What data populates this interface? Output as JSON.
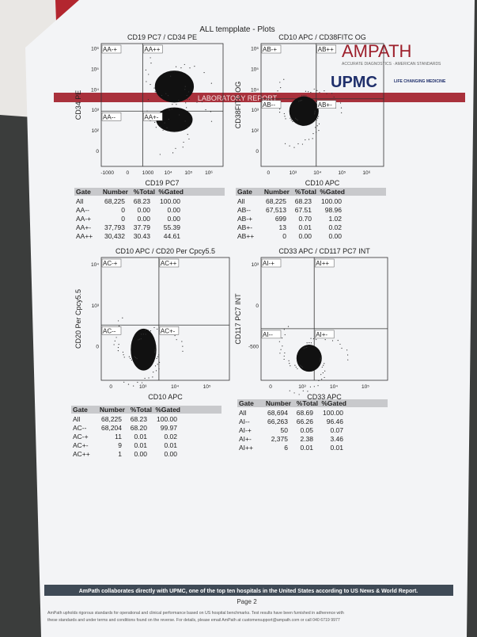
{
  "title": "ALL tempplate - Plots",
  "branding": {
    "ampath": "AMPATH",
    "ampath_sub": "ACCURATE DIAGNOSTICS · AMERICAN STANDARDS",
    "upmc": "UPMC",
    "upmc_sub": "LIFE CHANGING MEDICINE",
    "banner": "LABORATORY REPORT"
  },
  "plots": [
    {
      "title": "CD19 PC7 / CD34 PE",
      "x_label": "CD19 PC7",
      "y_label": "CD34 PE",
      "x_ticks": [
        "-1000",
        "0",
        "1000",
        "10⁴",
        "10⁵",
        "10⁶"
      ],
      "y_ticks": [
        "10⁶",
        "10⁵",
        "10⁴",
        "10³",
        "10²",
        "0"
      ],
      "quadrants": [
        "AA-+",
        "AA++",
        "AA--",
        "AA+-"
      ],
      "table": {
        "header": [
          "Gate",
          "Number",
          "%Total",
          "%Gated"
        ],
        "rows": [
          [
            "All",
            "68,225",
            "68.23",
            "100.00"
          ],
          [
            "AA--",
            "0",
            "0.00",
            "0.00"
          ],
          [
            "AA-+",
            "0",
            "0.00",
            "0.00"
          ],
          [
            "AA+-",
            "37,793",
            "37.79",
            "55.39"
          ],
          [
            "AA++",
            "30,432",
            "30.43",
            "44.61"
          ]
        ]
      }
    },
    {
      "title": "CD10 APC / CD38FITC OG",
      "x_label": "CD10 APC",
      "y_label": "CD38FITC OG",
      "x_ticks": [
        "0",
        "10³",
        "10⁴",
        "10⁵",
        "10⁶"
      ],
      "y_ticks": [
        "10⁶",
        "10⁵",
        "10⁴",
        "10³",
        "10²",
        "0"
      ],
      "quadrants": [
        "AB-+",
        "AB++",
        "AB--",
        "AB+-"
      ],
      "table": {
        "header": [
          "Gate",
          "Number",
          "%Total",
          "%Gated"
        ],
        "rows": [
          [
            "All",
            "68,225",
            "68.23",
            "100.00"
          ],
          [
            "AB--",
            "67,513",
            "67.51",
            "98.96"
          ],
          [
            "AB-+",
            "699",
            "0.70",
            "1.02"
          ],
          [
            "AB+-",
            "13",
            "0.01",
            "0.02"
          ],
          [
            "AB++",
            "0",
            "0.00",
            "0.00"
          ]
        ]
      }
    },
    {
      "title": "CD10 APC / CD20 Per Cpcy5.5",
      "x_label": "CD10 APC",
      "y_label": "CD20 Per Cpcy5.5",
      "x_ticks": [
        "0",
        "10³",
        "10⁴",
        "10⁵"
      ],
      "y_ticks": [
        "10⁴",
        "10³",
        "0"
      ],
      "quadrants": [
        "AC-+",
        "AC++",
        "AC--",
        "AC+-"
      ],
      "table": {
        "header": [
          "Gate",
          "Number",
          "%Total",
          "%Gated"
        ],
        "rows": [
          [
            "All",
            "68,225",
            "68.23",
            "100.00"
          ],
          [
            "AC--",
            "68,204",
            "68.20",
            "99.97"
          ],
          [
            "AC-+",
            "11",
            "0.01",
            "0.02"
          ],
          [
            "AC+-",
            "9",
            "0.01",
            "0.01"
          ],
          [
            "AC++",
            "1",
            "0.00",
            "0.00"
          ]
        ]
      }
    },
    {
      "title": "CD33 APC / CD117 PC7 INT",
      "x_label": "CD33 APC",
      "y_label": "CD117 PC7 INT",
      "x_ticks": [
        "0",
        "10³",
        "10⁴",
        "10⁵"
      ],
      "y_ticks": [
        "10³",
        "0",
        "-500"
      ],
      "quadrants": [
        "AI-+",
        "AI++",
        "AI--",
        "AI+-"
      ],
      "table": {
        "header": [
          "Gate",
          "Number",
          "%Total",
          "%Gated"
        ],
        "rows": [
          [
            "All",
            "68,694",
            "68.69",
            "100.00"
          ],
          [
            "AI--",
            "66,263",
            "66.26",
            "96.46"
          ],
          [
            "AI-+",
            "50",
            "0.05",
            "0.07"
          ],
          [
            "AI+-",
            "2,375",
            "2.38",
            "3.46"
          ],
          [
            "AI++",
            "6",
            "0.01",
            "0.01"
          ]
        ]
      }
    }
  ],
  "footer": {
    "banner": "AmPath collaborates directly with UPMC, one of the top ten hospitals in the United States according to US News & World Report.",
    "page": "Page 2",
    "fine_print_1": "AmPath upholds rigorous standards for operational and clinical performance based on US hospital benchmarks. Test results have been furnished in adherence with",
    "fine_print_2": "these standards and under terms and conditions found on the reverse. For details, please email AmPath at customersupport@ampath.com or call 040 6719 9977"
  }
}
